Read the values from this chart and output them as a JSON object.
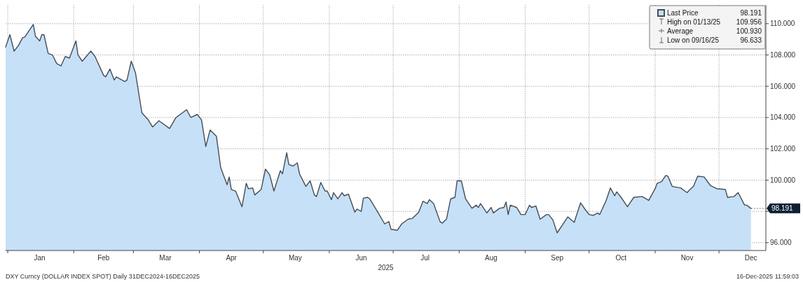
{
  "chart_data": {
    "type": "area",
    "xlabel": "2025",
    "xlim": [
      "2024-12-31",
      "2025-12-23"
    ],
    "xticks": [
      {
        "value": "2025-01-01",
        "label": null
      },
      {
        "value": "2025-01-16",
        "label": "Jan"
      },
      {
        "value": "2025-02-01",
        "label": null
      },
      {
        "value": "2025-02-15",
        "label": "Feb"
      },
      {
        "value": "2025-03-01",
        "label": null
      },
      {
        "value": "2025-03-16",
        "label": "Mar"
      },
      {
        "value": "2025-04-01",
        "label": null
      },
      {
        "value": "2025-04-16",
        "label": "Apr"
      },
      {
        "value": "2025-05-01",
        "label": null
      },
      {
        "value": "2025-05-16",
        "label": "May"
      },
      {
        "value": "2025-06-01",
        "label": null
      },
      {
        "value": "2025-06-16",
        "label": "Jun"
      },
      {
        "value": "2025-07-01",
        "label": null
      },
      {
        "value": "2025-07-16",
        "label": "Jul"
      },
      {
        "value": "2025-08-01",
        "label": null
      },
      {
        "value": "2025-08-16",
        "label": "Aug"
      },
      {
        "value": "2025-09-01",
        "label": null
      },
      {
        "value": "2025-09-16",
        "label": "Sep"
      },
      {
        "value": "2025-10-01",
        "label": null
      },
      {
        "value": "2025-10-16",
        "label": "Oct"
      },
      {
        "value": "2025-11-01",
        "label": null
      },
      {
        "value": "2025-11-16",
        "label": "Nov"
      },
      {
        "value": "2025-12-01",
        "label": null
      },
      {
        "value": "2025-12-16",
        "label": "Dec"
      }
    ],
    "ylim": [
      95.5,
      111.2
    ],
    "yticks": [
      {
        "value": 96,
        "label": "96.000"
      },
      {
        "value": 98,
        "label": null
      },
      {
        "value": 100,
        "label": "100.000"
      },
      {
        "value": 102,
        "label": "102.000"
      },
      {
        "value": 104,
        "label": "104.000"
      },
      {
        "value": 106,
        "label": "106.000"
      },
      {
        "value": 108,
        "label": "108.000"
      },
      {
        "value": 110,
        "label": "110.000"
      }
    ],
    "grid": true,
    "legend": "top right",
    "series": [
      {
        "name": "Last Price",
        "color": "#c6e0f7",
        "x": [
          "2024-12-31",
          "2025-01-02",
          "2025-01-04",
          "2025-01-06",
          "2025-01-08",
          "2025-01-09",
          "2025-01-13",
          "2025-01-14",
          "2025-01-16",
          "2025-01-17",
          "2025-01-18",
          "2025-01-20",
          "2025-01-22",
          "2025-01-24",
          "2025-01-26",
          "2025-01-28",
          "2025-01-30",
          "2025-02-02",
          "2025-02-03",
          "2025-02-05",
          "2025-02-09",
          "2025-02-11",
          "2025-02-15",
          "2025-02-16",
          "2025-02-18",
          "2025-02-20",
          "2025-02-21",
          "2025-02-25",
          "2025-02-26",
          "2025-02-28",
          "2025-03-02",
          "2025-03-05",
          "2025-03-08",
          "2025-03-10",
          "2025-03-13",
          "2025-03-18",
          "2025-03-21",
          "2025-03-23",
          "2025-03-26",
          "2025-03-28",
          "2025-03-31",
          "2025-04-02",
          "2025-04-04",
          "2025-04-06",
          "2025-04-09",
          "2025-04-11",
          "2025-04-14",
          "2025-04-15",
          "2025-04-16",
          "2025-04-18",
          "2025-04-21",
          "2025-04-23",
          "2025-04-24",
          "2025-04-26",
          "2025-04-27",
          "2025-04-30",
          "2025-05-02",
          "2025-05-04",
          "2025-05-06",
          "2025-05-09",
          "2025-05-10",
          "2025-05-12",
          "2025-05-13",
          "2025-05-15",
          "2025-05-17",
          "2025-05-18",
          "2025-05-21",
          "2025-05-23",
          "2025-05-25",
          "2025-05-26",
          "2025-05-28",
          "2025-05-30",
          "2025-05-31",
          "2025-06-02",
          "2025-06-03",
          "2025-06-05",
          "2025-06-07",
          "2025-06-08",
          "2025-06-10",
          "2025-06-13",
          "2025-06-14",
          "2025-06-16",
          "2025-06-17",
          "2025-06-19",
          "2025-06-20",
          "2025-06-24",
          "2025-06-27",
          "2025-06-29",
          "2025-06-30",
          "2025-07-03",
          "2025-07-05",
          "2025-07-08",
          "2025-07-10",
          "2025-07-13",
          "2025-07-15",
          "2025-07-17",
          "2025-07-18",
          "2025-07-20",
          "2025-07-23",
          "2025-07-24",
          "2025-07-26",
          "2025-07-28",
          "2025-07-30",
          "2025-07-31",
          "2025-08-02",
          "2025-08-04",
          "2025-08-07",
          "2025-08-09",
          "2025-08-10",
          "2025-08-11",
          "2025-08-14",
          "2025-08-16",
          "2025-08-17",
          "2025-08-20",
          "2025-08-22",
          "2025-08-23",
          "2025-08-24",
          "2025-08-25",
          "2025-08-28",
          "2025-08-30",
          "2025-09-01",
          "2025-09-03",
          "2025-09-04",
          "2025-09-06",
          "2025-09-08",
          "2025-09-11",
          "2025-09-12",
          "2025-09-14",
          "2025-09-16",
          "2025-09-21",
          "2025-09-24",
          "2025-09-27",
          "2025-09-29",
          "2025-10-01",
          "2025-10-03",
          "2025-10-05",
          "2025-10-06",
          "2025-10-09",
          "2025-10-11",
          "2025-10-13",
          "2025-10-14",
          "2025-10-16",
          "2025-10-19",
          "2025-10-20",
          "2025-10-22",
          "2025-10-26",
          "2025-10-29",
          "2025-11-01",
          "2025-11-02",
          "2025-11-04",
          "2025-11-06",
          "2025-11-07",
          "2025-11-09",
          "2025-11-13",
          "2025-11-16",
          "2025-11-17",
          "2025-11-19",
          "2025-11-21",
          "2025-11-24",
          "2025-11-27",
          "2025-11-30",
          "2025-12-04",
          "2025-12-05",
          "2025-12-08",
          "2025-12-10",
          "2025-12-13",
          "2025-12-14",
          "2025-12-16"
        ],
        "values": [
          108.5,
          109.3,
          108.25,
          108.6,
          109.1,
          109.15,
          109.95,
          109.2,
          108.9,
          109.3,
          109.3,
          108.1,
          108.0,
          107.45,
          107.3,
          107.9,
          107.8,
          108.9,
          108.0,
          107.6,
          108.25,
          107.9,
          106.7,
          106.6,
          107.1,
          106.4,
          106.6,
          106.3,
          106.4,
          107.6,
          106.85,
          104.3,
          103.85,
          103.4,
          103.8,
          103.3,
          104.0,
          104.2,
          104.5,
          104.0,
          104.2,
          103.85,
          102.15,
          103.2,
          102.8,
          100.8,
          99.7,
          100.2,
          99.4,
          99.3,
          98.3,
          99.8,
          99.45,
          99.5,
          99.05,
          99.4,
          100.7,
          100.35,
          99.3,
          100.6,
          100.4,
          101.75,
          101.0,
          100.9,
          101.1,
          100.4,
          99.6,
          99.95,
          99.05,
          98.95,
          99.85,
          99.3,
          99.3,
          98.75,
          99.2,
          98.8,
          99.2,
          99.0,
          99.1,
          97.95,
          98.15,
          98.0,
          98.85,
          98.9,
          98.8,
          97.9,
          97.2,
          97.35,
          96.85,
          96.8,
          97.2,
          97.5,
          97.55,
          97.95,
          98.65,
          98.5,
          98.75,
          98.5,
          97.35,
          97.25,
          97.5,
          98.8,
          98.9,
          99.95,
          99.95,
          98.8,
          98.2,
          98.4,
          98.25,
          98.5,
          97.9,
          98.25,
          97.9,
          98.2,
          98.25,
          98.6,
          97.8,
          98.4,
          98.25,
          97.8,
          97.8,
          98.4,
          98.25,
          98.35,
          97.5,
          97.8,
          97.8,
          97.45,
          96.63,
          97.65,
          97.3,
          98.55,
          98.15,
          97.8,
          97.75,
          97.9,
          97.8,
          98.7,
          99.5,
          99.0,
          99.25,
          98.9,
          98.3,
          98.5,
          98.9,
          98.95,
          98.7,
          99.45,
          99.8,
          99.9,
          100.3,
          100.25,
          99.6,
          99.5,
          99.2,
          99.35,
          99.6,
          100.25,
          100.2,
          99.65,
          99.45,
          99.4,
          98.9,
          98.95,
          99.2,
          98.4,
          98.4,
          98.191
        ]
      }
    ],
    "annotations": [
      "98.191",
      "High on 01/13/25",
      "109.956",
      "Average",
      "100.930",
      "Low on 09/16/25",
      "96.633",
      {
        "text": "98.191",
        "x": "2025-12-16",
        "y": 98.191
      },
      "DXY Curncy (DOLLAR INDEX SPOT) Daily 31DEC2024-16DEC2025",
      "16-Dec-2025 11:59:03"
    ]
  }
}
